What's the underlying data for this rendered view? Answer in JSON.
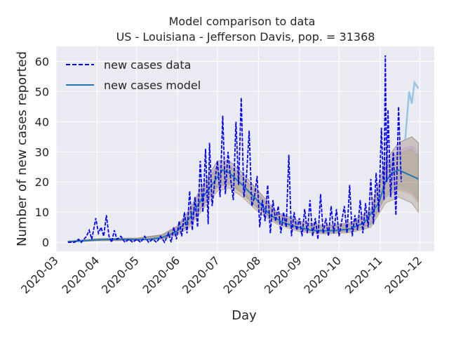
{
  "chart_data": {
    "type": "line",
    "title": "Model comparison to data",
    "subtitle": "US - Louisiana - Jefferson Davis, pop. = 31368",
    "xlabel": "Day",
    "ylabel": "Number of new cases reported",
    "xlim": [
      "2020-03-01",
      "2020-12-12"
    ],
    "ylim": [
      -3,
      65
    ],
    "x_ticks": [
      "2020-03",
      "2020-04",
      "2020-05",
      "2020-06",
      "2020-07",
      "2020-08",
      "2020-09",
      "2020-10",
      "2020-11",
      "2020-12"
    ],
    "y_ticks": [
      0,
      10,
      20,
      30,
      40,
      50,
      60
    ],
    "grid": true,
    "legend_position": "top-left",
    "series": [
      {
        "name": "new cases data",
        "style": "dashed",
        "color": "#0000ff",
        "points": [
          [
            "2020-03-10",
            0
          ],
          [
            "2020-03-15",
            0
          ],
          [
            "2020-03-18",
            1
          ],
          [
            "2020-03-20",
            0
          ],
          [
            "2020-03-24",
            2
          ],
          [
            "2020-03-26",
            4
          ],
          [
            "2020-03-28",
            1
          ],
          [
            "2020-03-31",
            8
          ],
          [
            "2020-04-02",
            3
          ],
          [
            "2020-04-04",
            5
          ],
          [
            "2020-04-06",
            2
          ],
          [
            "2020-04-08",
            9
          ],
          [
            "2020-04-10",
            2
          ],
          [
            "2020-04-12",
            0
          ],
          [
            "2020-04-14",
            4
          ],
          [
            "2020-04-16",
            1
          ],
          [
            "2020-04-19",
            2
          ],
          [
            "2020-04-22",
            0
          ],
          [
            "2020-04-25",
            1
          ],
          [
            "2020-04-28",
            0
          ],
          [
            "2020-05-01",
            1
          ],
          [
            "2020-05-04",
            0
          ],
          [
            "2020-05-07",
            2
          ],
          [
            "2020-05-10",
            0
          ],
          [
            "2020-05-13",
            1
          ],
          [
            "2020-05-16",
            0
          ],
          [
            "2020-05-19",
            2
          ],
          [
            "2020-05-22",
            0
          ],
          [
            "2020-05-25",
            3
          ],
          [
            "2020-05-27",
            0
          ],
          [
            "2020-05-29",
            5
          ],
          [
            "2020-05-31",
            1
          ],
          [
            "2020-06-02",
            7
          ],
          [
            "2020-06-04",
            2
          ],
          [
            "2020-06-06",
            10
          ],
          [
            "2020-06-08",
            3
          ],
          [
            "2020-06-10",
            17
          ],
          [
            "2020-06-12",
            4
          ],
          [
            "2020-06-14",
            15
          ],
          [
            "2020-06-16",
            5
          ],
          [
            "2020-06-18",
            27
          ],
          [
            "2020-06-20",
            10
          ],
          [
            "2020-06-22",
            31
          ],
          [
            "2020-06-24",
            6
          ],
          [
            "2020-06-25",
            33
          ],
          [
            "2020-06-27",
            12
          ],
          [
            "2020-06-29",
            20
          ],
          [
            "2020-07-01",
            27
          ],
          [
            "2020-07-03",
            15
          ],
          [
            "2020-07-05",
            42
          ],
          [
            "2020-07-07",
            16
          ],
          [
            "2020-07-09",
            30
          ],
          [
            "2020-07-11",
            21
          ],
          [
            "2020-07-13",
            14
          ],
          [
            "2020-07-15",
            40
          ],
          [
            "2020-07-17",
            19
          ],
          [
            "2020-07-19",
            48
          ],
          [
            "2020-07-21",
            15
          ],
          [
            "2020-07-23",
            22
          ],
          [
            "2020-07-25",
            37
          ],
          [
            "2020-07-27",
            12
          ],
          [
            "2020-07-29",
            15
          ],
          [
            "2020-07-31",
            22
          ],
          [
            "2020-08-02",
            5
          ],
          [
            "2020-08-04",
            14
          ],
          [
            "2020-08-06",
            7
          ],
          [
            "2020-08-08",
            19
          ],
          [
            "2020-08-10",
            3
          ],
          [
            "2020-08-12",
            14
          ],
          [
            "2020-08-14",
            7
          ],
          [
            "2020-08-16",
            12
          ],
          [
            "2020-08-18",
            3
          ],
          [
            "2020-08-20",
            10
          ],
          [
            "2020-08-22",
            5
          ],
          [
            "2020-08-24",
            29
          ],
          [
            "2020-08-26",
            2
          ],
          [
            "2020-08-28",
            10
          ],
          [
            "2020-08-30",
            4
          ],
          [
            "2020-09-01",
            8
          ],
          [
            "2020-09-03",
            2
          ],
          [
            "2020-09-05",
            11
          ],
          [
            "2020-09-07",
            3
          ],
          [
            "2020-09-09",
            14
          ],
          [
            "2020-09-11",
            2
          ],
          [
            "2020-09-13",
            8
          ],
          [
            "2020-09-15",
            1
          ],
          [
            "2020-09-17",
            16
          ],
          [
            "2020-09-19",
            3
          ],
          [
            "2020-09-21",
            8
          ],
          [
            "2020-09-23",
            2
          ],
          [
            "2020-09-25",
            12
          ],
          [
            "2020-09-27",
            3
          ],
          [
            "2020-09-29",
            11
          ],
          [
            "2020-10-01",
            2
          ],
          [
            "2020-10-03",
            7
          ],
          [
            "2020-10-05",
            12
          ],
          [
            "2020-10-07",
            3
          ],
          [
            "2020-10-09",
            19
          ],
          [
            "2020-10-11",
            2
          ],
          [
            "2020-10-13",
            9
          ],
          [
            "2020-10-15",
            4
          ],
          [
            "2020-10-17",
            14
          ],
          [
            "2020-10-19",
            3
          ],
          [
            "2020-10-21",
            13
          ],
          [
            "2020-10-23",
            5
          ],
          [
            "2020-10-25",
            21
          ],
          [
            "2020-10-27",
            6
          ],
          [
            "2020-10-29",
            23
          ],
          [
            "2020-10-31",
            10
          ],
          [
            "2020-11-02",
            38
          ],
          [
            "2020-11-04",
            14
          ],
          [
            "2020-11-05",
            62
          ],
          [
            "2020-11-06",
            20
          ],
          [
            "2020-11-07",
            44
          ],
          [
            "2020-11-09",
            15
          ],
          [
            "2020-11-11",
            30
          ],
          [
            "2020-11-13",
            9
          ],
          [
            "2020-11-15",
            45
          ],
          [
            "2020-11-17",
            20
          ]
        ]
      },
      {
        "name": "new cases model",
        "style": "solid",
        "color": "#1f77b4",
        "points": [
          [
            "2020-03-10",
            0.2
          ],
          [
            "2020-03-20",
            0.4
          ],
          [
            "2020-04-01",
            0.8
          ],
          [
            "2020-04-10",
            1.0
          ],
          [
            "2020-04-20",
            1.0
          ],
          [
            "2020-05-01",
            0.9
          ],
          [
            "2020-05-10",
            1.0
          ],
          [
            "2020-05-20",
            1.6
          ],
          [
            "2020-05-31",
            3.5
          ],
          [
            "2020-06-10",
            8
          ],
          [
            "2020-06-20",
            15
          ],
          [
            "2020-06-30",
            21
          ],
          [
            "2020-07-05",
            24
          ],
          [
            "2020-07-10",
            23
          ],
          [
            "2020-07-20",
            19
          ],
          [
            "2020-07-31",
            14
          ],
          [
            "2020-08-10",
            9
          ],
          [
            "2020-08-20",
            6.5
          ],
          [
            "2020-08-31",
            5
          ],
          [
            "2020-09-10",
            4
          ],
          [
            "2020-09-20",
            3.8
          ],
          [
            "2020-09-30",
            4
          ],
          [
            "2020-10-10",
            4.5
          ],
          [
            "2020-10-20",
            6.5
          ],
          [
            "2020-10-31",
            13
          ],
          [
            "2020-11-05",
            20
          ],
          [
            "2020-11-10",
            23
          ],
          [
            "2020-11-15",
            24
          ],
          [
            "2020-11-20",
            23
          ],
          [
            "2020-11-25",
            22
          ],
          [
            "2020-11-30",
            21
          ]
        ]
      }
    ],
    "ensemble_band": {
      "description_colors": [
        "#ff7f0e",
        "#2ca02c",
        "#d62728",
        "#9467bd",
        "#8c564b",
        "#e377c2",
        "#17becf",
        "#bcbd22"
      ],
      "points": [
        [
          "2020-03-10",
          0.1,
          0.4
        ],
        [
          "2020-04-01",
          0.5,
          1.2
        ],
        [
          "2020-05-01",
          0.6,
          1.4
        ],
        [
          "2020-05-20",
          1.0,
          2.5
        ],
        [
          "2020-06-01",
          2.5,
          5.5
        ],
        [
          "2020-06-10",
          5,
          11
        ],
        [
          "2020-06-20",
          11,
          19
        ],
        [
          "2020-07-01",
          17,
          27
        ],
        [
          "2020-07-10",
          18,
          27
        ],
        [
          "2020-07-20",
          15,
          23
        ],
        [
          "2020-08-01",
          10,
          17
        ],
        [
          "2020-08-15",
          6,
          10
        ],
        [
          "2020-09-01",
          3.5,
          7
        ],
        [
          "2020-09-20",
          2.8,
          5.5
        ],
        [
          "2020-10-10",
          3.2,
          6.5
        ],
        [
          "2020-10-25",
          5,
          11
        ],
        [
          "2020-11-05",
          13,
          27
        ],
        [
          "2020-11-15",
          15,
          33
        ],
        [
          "2020-11-25",
          13,
          35
        ],
        [
          "2020-11-30",
          10,
          33
        ]
      ]
    },
    "forecast_upper_line": {
      "color": "#8ec1de",
      "points": [
        [
          "2020-11-20",
          34
        ],
        [
          "2020-11-23",
          50
        ],
        [
          "2020-11-25",
          46
        ],
        [
          "2020-11-27",
          53
        ],
        [
          "2020-11-30",
          51
        ]
      ]
    }
  }
}
